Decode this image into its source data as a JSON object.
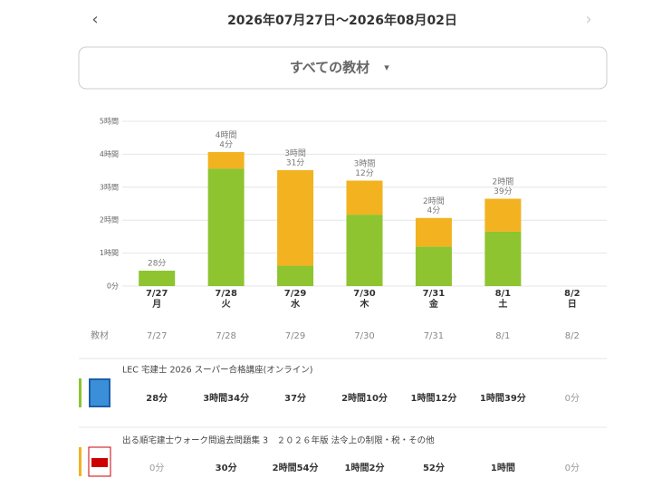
{
  "header": {
    "title": "2026年07月27日〜2026年08月02日",
    "prev": "‹",
    "next": "›"
  },
  "filter": {
    "label": "すべての教材",
    "caret": "▾"
  },
  "chart_data": {
    "type": "stacked-bar",
    "categories": [
      "7/27",
      "7/28",
      "7/29",
      "7/30",
      "7/31",
      "8/1",
      "8/2"
    ],
    "weekdays": [
      "月",
      "火",
      "水",
      "木",
      "金",
      "土",
      "日"
    ],
    "series": [
      {
        "name": "LEC 宅建士 2026 スーパー合格講座(オンライン)",
        "color": "#8dc430",
        "values": [
          0.4667,
          3.5667,
          0.6167,
          2.1667,
          1.2,
          1.65,
          0
        ]
      },
      {
        "name": "出る順宅建士ウォーク問過去問題集 3　２０２６年版 法令上の制限・税・その他",
        "color": "#f3b220",
        "values": [
          0,
          0.5,
          2.9,
          1.0333,
          0.8667,
          1.0,
          0
        ]
      }
    ],
    "totals": [
      0.4667,
      4.0667,
      3.5167,
      3.2,
      2.0667,
      2.65,
      null
    ],
    "total_labels": [
      "28分",
      "4時間\n4分",
      "3時間\n31分",
      "3時間\n12分",
      "2時間\n4分",
      "2時間\n39分",
      null
    ],
    "ylim": [
      0,
      5
    ],
    "yticks": [
      {
        "value": 0,
        "label": "0分"
      },
      {
        "value": 1,
        "label": "1時間"
      },
      {
        "value": 2,
        "label": "2時間"
      },
      {
        "value": 3,
        "label": "3時間"
      },
      {
        "value": 4,
        "label": "4時間"
      },
      {
        "value": 5,
        "label": "5時間"
      }
    ],
    "grid": true
  },
  "table": {
    "header": "教材",
    "columns": [
      "7/27",
      "7/28",
      "7/29",
      "7/30",
      "7/31",
      "8/1",
      "8/2"
    ],
    "rows": [
      {
        "name": "LEC 宅建士 2026 スーパー合格講座(オンライン)",
        "cells": [
          "28分",
          "3時間34分",
          "37分",
          "2時間10分",
          "1時間12分",
          "1時間39分",
          "0分"
        ]
      },
      {
        "name": "出る順宅建士ウォーク問過去問題集 3　２０２６年版 法令上の制限・税・その他",
        "cells": [
          "0分",
          "30分",
          "2時間54分",
          "1時間2分",
          "52分",
          "1時間",
          "0分"
        ]
      }
    ]
  }
}
